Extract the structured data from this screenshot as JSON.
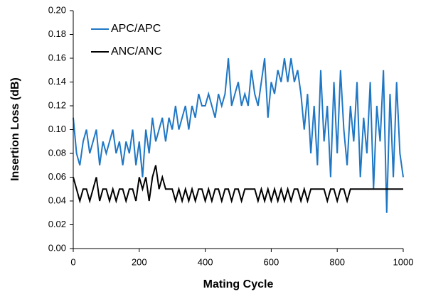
{
  "chart_data": {
    "type": "line",
    "x_label": "Mating Cycle",
    "y_label": "Insertion Loss (dB)",
    "x": [
      0,
      10,
      20,
      30,
      40,
      50,
      60,
      70,
      80,
      90,
      100,
      110,
      120,
      130,
      140,
      150,
      160,
      170,
      180,
      190,
      200,
      210,
      220,
      230,
      240,
      250,
      260,
      270,
      280,
      290,
      300,
      310,
      320,
      330,
      340,
      350,
      360,
      370,
      380,
      390,
      400,
      410,
      420,
      430,
      440,
      450,
      460,
      470,
      480,
      490,
      500,
      510,
      520,
      530,
      540,
      550,
      560,
      570,
      580,
      590,
      600,
      610,
      620,
      630,
      640,
      650,
      660,
      670,
      680,
      690,
      700,
      710,
      720,
      730,
      740,
      750,
      760,
      770,
      780,
      790,
      800,
      810,
      820,
      830,
      840,
      850,
      860,
      870,
      880,
      890,
      900,
      910,
      920,
      930,
      940,
      950,
      960,
      970,
      980,
      990,
      1000
    ],
    "series": [
      {
        "name": "APC/APC",
        "color": "#1f77c4",
        "values": [
          0.11,
          0.08,
          0.07,
          0.09,
          0.1,
          0.08,
          0.09,
          0.1,
          0.07,
          0.09,
          0.08,
          0.09,
          0.1,
          0.08,
          0.09,
          0.07,
          0.09,
          0.08,
          0.1,
          0.07,
          0.09,
          0.06,
          0.1,
          0.08,
          0.11,
          0.09,
          0.1,
          0.11,
          0.09,
          0.11,
          0.1,
          0.12,
          0.1,
          0.11,
          0.12,
          0.1,
          0.12,
          0.11,
          0.13,
          0.12,
          0.12,
          0.13,
          0.12,
          0.11,
          0.13,
          0.12,
          0.13,
          0.16,
          0.12,
          0.13,
          0.14,
          0.12,
          0.13,
          0.12,
          0.15,
          0.13,
          0.12,
          0.14,
          0.16,
          0.11,
          0.14,
          0.13,
          0.15,
          0.14,
          0.16,
          0.14,
          0.16,
          0.14,
          0.15,
          0.13,
          0.1,
          0.13,
          0.08,
          0.12,
          0.07,
          0.15,
          0.09,
          0.12,
          0.06,
          0.14,
          0.08,
          0.15,
          0.1,
          0.07,
          0.12,
          0.09,
          0.14,
          0.06,
          0.11,
          0.08,
          0.14,
          0.05,
          0.12,
          0.09,
          0.15,
          0.03,
          0.13,
          0.06,
          0.14,
          0.08,
          0.06
        ]
      },
      {
        "name": "ANC/ANC",
        "color": "#000000",
        "values": [
          0.06,
          0.05,
          0.04,
          0.05,
          0.05,
          0.04,
          0.05,
          0.06,
          0.04,
          0.05,
          0.05,
          0.04,
          0.05,
          0.04,
          0.05,
          0.05,
          0.04,
          0.05,
          0.05,
          0.04,
          0.06,
          0.05,
          0.06,
          0.04,
          0.06,
          0.07,
          0.05,
          0.06,
          0.05,
          0.05,
          0.05,
          0.04,
          0.05,
          0.04,
          0.05,
          0.04,
          0.05,
          0.04,
          0.05,
          0.05,
          0.04,
          0.05,
          0.04,
          0.05,
          0.05,
          0.04,
          0.05,
          0.05,
          0.04,
          0.05,
          0.05,
          0.04,
          0.05,
          0.05,
          0.05,
          0.05,
          0.04,
          0.05,
          0.04,
          0.05,
          0.04,
          0.05,
          0.04,
          0.05,
          0.04,
          0.05,
          0.04,
          0.05,
          0.05,
          0.04,
          0.05,
          0.04,
          0.05,
          0.05,
          0.05,
          0.05,
          0.05,
          0.04,
          0.05,
          0.05,
          0.04,
          0.05,
          0.05,
          0.04,
          0.05,
          0.05,
          0.05,
          0.05,
          0.05,
          0.05,
          0.05,
          0.05,
          0.05,
          0.05,
          0.05,
          0.05,
          0.05,
          0.05,
          0.05,
          0.05,
          0.05
        ]
      }
    ],
    "xlim": [
      0,
      1000
    ],
    "xticks": [
      0,
      200,
      400,
      600,
      800,
      1000
    ],
    "ylim": [
      0,
      0.2
    ],
    "yticks": [
      {
        "value": 0,
        "label": "0.00"
      },
      {
        "value": 0.02,
        "label": "0.02"
      },
      {
        "value": 0.04,
        "label": "0.04"
      },
      {
        "value": 0.06,
        "label": "0.06"
      },
      {
        "value": 0.08,
        "label": "0.08"
      },
      {
        "value": 0.1,
        "label": "0.10"
      },
      {
        "value": 0.12,
        "label": "0.12"
      },
      {
        "value": 0.14,
        "label": "0.14"
      },
      {
        "value": 0.16,
        "label": "0.16"
      },
      {
        "value": 0.18,
        "label": "0.18"
      },
      {
        "value": 0.2,
        "label": "0.20"
      }
    ],
    "legend": "upper-left"
  }
}
